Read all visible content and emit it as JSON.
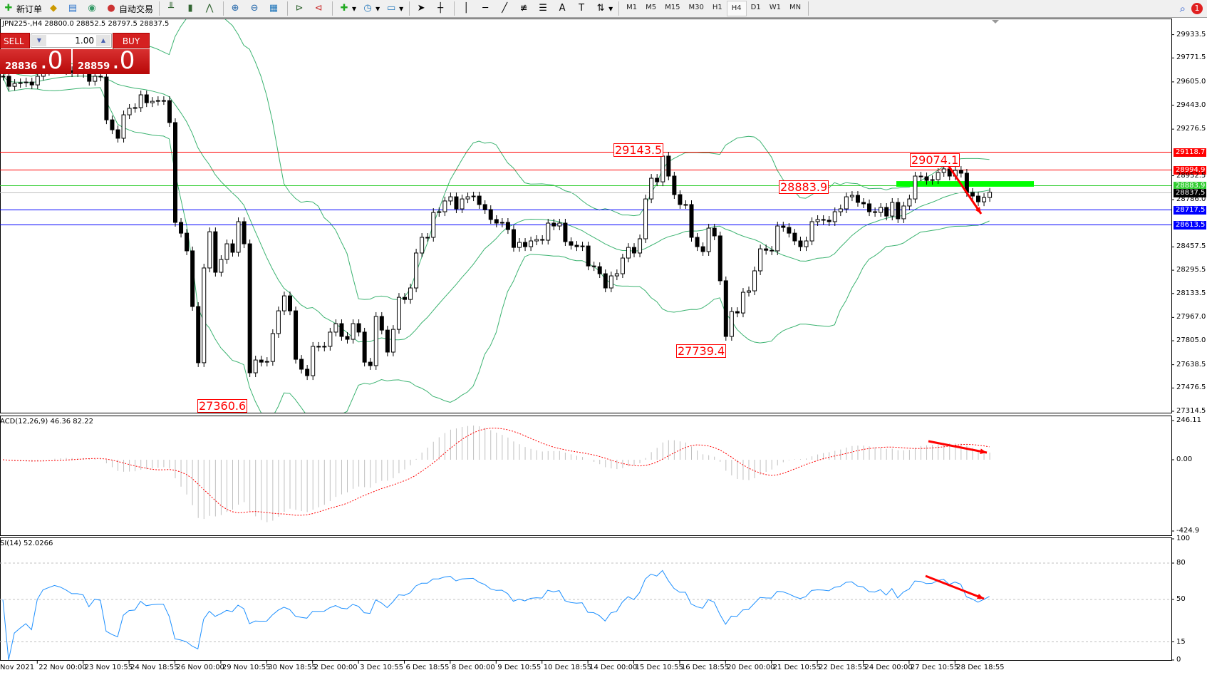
{
  "toolbar": {
    "new_order": "新订单",
    "auto_trading": "自动交易",
    "timeframes": [
      "M1",
      "M5",
      "M15",
      "M30",
      "H1",
      "H4",
      "D1",
      "W1",
      "MN"
    ],
    "active_timeframe": "H4",
    "notification_count": "1",
    "icons": [
      "new-order-icon",
      "metaeditor-icon",
      "navigator-icon",
      "signal-icon",
      "auto-trading-icon",
      "bar-chart-icon",
      "candlestick-icon",
      "line-chart-icon",
      "zoom-in-icon",
      "zoom-out-icon",
      "tile-windows-icon",
      "autoscroll-icon",
      "chart-shift-icon",
      "indicators-icon",
      "periods-icon",
      "templates-icon",
      "cursor-icon",
      "crosshair-icon",
      "vertical-line-icon",
      "horizontal-line-icon",
      "trendline-icon",
      "fibonacci-icon",
      "fibo-fan-icon",
      "text-icon",
      "text-label-icon",
      "arrows-icon",
      "search-icon",
      "notification-icon"
    ]
  },
  "chart": {
    "header": "JPN225-,H4  28800.0 28852.5 28797.5 28837.5",
    "one_click": {
      "sell": "SELL",
      "buy": "BUY",
      "lot": "1.00",
      "sell_price_main": "28836",
      "sell_price_big": ".0",
      "buy_price_main": "28859",
      "buy_price_big": ".0"
    },
    "price_ticks": [
      "29933.5",
      "29771.5",
      "29605.0",
      "29443.0",
      "29276.5",
      "28952.5",
      "28786.0",
      "28457.5",
      "28295.5",
      "28133.5",
      "27967.0",
      "27805.0",
      "27638.5",
      "27476.5",
      "27314.5"
    ],
    "levels": [
      {
        "price": 29118.7,
        "label": "29118.7",
        "color": "#ff0000"
      },
      {
        "price": 28994.9,
        "label": "28994.9",
        "color": "#ff0000"
      },
      {
        "price": 28883.9,
        "label": "28883.9",
        "color": "#32cd32"
      },
      {
        "price": 28837.5,
        "label": "28837.5",
        "color": "#000000",
        "line": "#c0c0c0"
      },
      {
        "price": 28717.5,
        "label": "28717.5",
        "color": "#0000ff"
      },
      {
        "price": 28613.5,
        "label": "28613.5",
        "color": "#0000ff"
      }
    ],
    "annotations": [
      "29143.5",
      "28883.9",
      "29074.1",
      "27739.4",
      "27360.6"
    ],
    "green_zone": [
      28876,
      28915
    ],
    "closes": [
      29644,
      29574,
      29594,
      29599,
      29604,
      29584,
      29644,
      29678,
      29688,
      29698,
      29693,
      29683,
      29669,
      29669,
      29664,
      29609,
      29644,
      29639,
      29341,
      29272,
      29213,
      29376,
      29421,
      29426,
      29515,
      29460,
      29470,
      29475,
      29475,
      29322,
      28628,
      28553,
      28430,
      28043,
      27652,
      28311,
      28563,
      28281,
      28370,
      28479,
      28420,
      28633,
      28479,
      27582,
      27671,
      27656,
      27661,
      27855,
      28013,
      28117,
      28013,
      27676,
      27607,
      27562,
      27766,
      27761,
      27766,
      27865,
      27924,
      27835,
      27815,
      27924,
      27865,
      27656,
      27632,
      27974,
      27879,
      27726,
      27884,
      28107,
      28092,
      28172,
      28415,
      28524,
      28524,
      28697,
      28702,
      28777,
      28806,
      28722,
      28791,
      28806,
      28811,
      28752,
      28717,
      28648,
      28623,
      28628,
      28578,
      28454,
      28489,
      28459,
      28499,
      28509,
      28504,
      28623,
      28603,
      28623,
      28494,
      28469,
      28459,
      28464,
      28325,
      28320,
      28271,
      28172,
      28256,
      28271,
      28380,
      28454,
      28415,
      28514,
      28791,
      28935,
      28910,
      29089,
      28950,
      28821,
      28752,
      28752,
      28524,
      28459,
      28425,
      28588,
      28534,
      28222,
      27835,
      28008,
      27998,
      28142,
      28152,
      28291,
      28444,
      28434,
      28430,
      28603,
      28593,
      28553,
      28499,
      28459,
      28499,
      28633,
      28648,
      28643,
      28633,
      28702,
      28722,
      28806,
      28816,
      28767,
      28757,
      28702,
      28697,
      28732,
      28672,
      28767,
      28653,
      28742,
      28791,
      28950,
      28945,
      28920,
      28925,
      28975,
      29000,
      28950,
      28990,
      28970,
      28836,
      28811,
      28771,
      28801,
      28837.5
    ],
    "bands": {
      "period": 20,
      "deviation": 2,
      "color": "#3cb371"
    },
    "candle_colors": {
      "up": "#ffffff",
      "down": "#000000"
    }
  },
  "macd": {
    "label": "ACD(12,26,9) 46.36 82.22",
    "ticks": [
      "246.11",
      "0.00",
      "-424.9"
    ],
    "histogram_color": "#c0c0c0",
    "signal_color": "#ff0000"
  },
  "rsi": {
    "label": "SI(14) 52.0266",
    "ticks": [
      "100",
      "80",
      "50",
      "15",
      "0"
    ],
    "color": "#1e90ff"
  },
  "time_axis": {
    "first": "Nov 2021",
    "labels": [
      "22 Nov 00:00",
      "23 Nov 10:55",
      "24 Nov 18:55",
      "26 Nov 00:00",
      "29 Nov 10:55",
      "30 Nov 18:55",
      "2 Dec 00:00",
      "3 Dec 10:55",
      "6 Dec 18:55",
      "8 Dec 00:00",
      "9 Dec 10:55",
      "10 Dec 18:55",
      "14 Dec 00:00",
      "15 Dec 10:55",
      "16 Dec 18:55",
      "20 Dec 00:00",
      "21 Dec 10:55",
      "22 Dec 18:55",
      "24 Dec 00:00",
      "27 Dec 10:55",
      "28 Dec 18:55"
    ]
  }
}
